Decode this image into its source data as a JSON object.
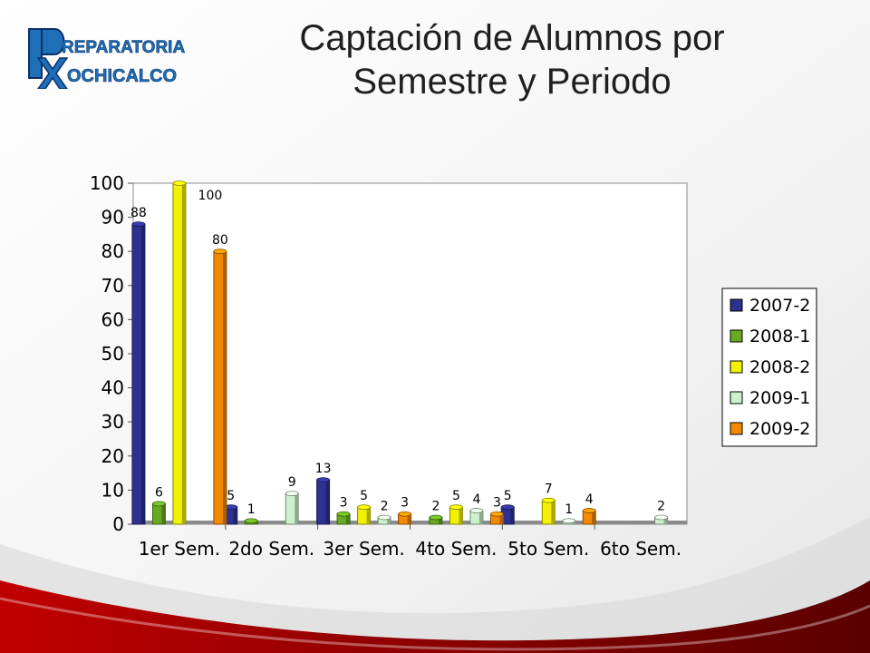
{
  "slide": {
    "title_line1": "Captación de Alumnos por",
    "title_line2": "Semestre y Periodo",
    "logo": {
      "big_letters": "P X",
      "line1": "REPARATORIA",
      "line2": "OCHICALCO"
    }
  },
  "chart_data": {
    "type": "bar",
    "title": "Captación de Alumnos por Semestre y Periodo",
    "xlabel": "",
    "ylabel": "",
    "ylim": [
      0,
      100
    ],
    "yticks": [
      0,
      10,
      20,
      30,
      40,
      50,
      60,
      70,
      80,
      90,
      100
    ],
    "grid": false,
    "legend_position": "right",
    "categories": [
      "1er Sem.",
      "2do Sem.",
      "3er Sem.",
      "4to Sem.",
      "5to Sem.",
      "6to Sem."
    ],
    "series": [
      {
        "name": "2007-2",
        "color": "#2e3192",
        "values": [
          88,
          5,
          13,
          null,
          5,
          null
        ]
      },
      {
        "name": "2008-1",
        "color": "#66aa22",
        "values": [
          6,
          1,
          3,
          2,
          null,
          null
        ]
      },
      {
        "name": "2008-2",
        "color": "#f2f200",
        "values": [
          100,
          null,
          5,
          5,
          7,
          null
        ]
      },
      {
        "name": "2009-1",
        "color": "#ccf2cc",
        "values": [
          null,
          9,
          2,
          4,
          1,
          2
        ]
      },
      {
        "name": "2009-2",
        "color": "#f28a00",
        "values": [
          80,
          null,
          3,
          3,
          4,
          null
        ]
      }
    ]
  }
}
